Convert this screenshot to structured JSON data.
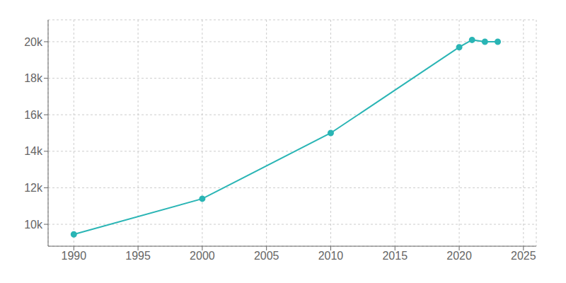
{
  "chart_data": {
    "type": "line",
    "x": [
      1990,
      2000,
      2010,
      2020,
      2021,
      2022,
      2023
    ],
    "values": [
      9450,
      11400,
      15000,
      19700,
      20100,
      20000,
      20000
    ],
    "color": "#2ab5b5",
    "marker": "circle",
    "xlim": [
      1988,
      2026
    ],
    "xticks": [
      1990,
      1995,
      2000,
      2005,
      2010,
      2015,
      2020,
      2025
    ],
    "ylim": [
      8800,
      21200
    ],
    "yticks": [
      {
        "value": 10000,
        "label": "10k"
      },
      {
        "value": 12000,
        "label": "12k"
      },
      {
        "value": 14000,
        "label": "14k"
      },
      {
        "value": 16000,
        "label": "16k"
      },
      {
        "value": 18000,
        "label": "18k"
      },
      {
        "value": 20000,
        "label": "20k"
      }
    ],
    "grid": true
  }
}
